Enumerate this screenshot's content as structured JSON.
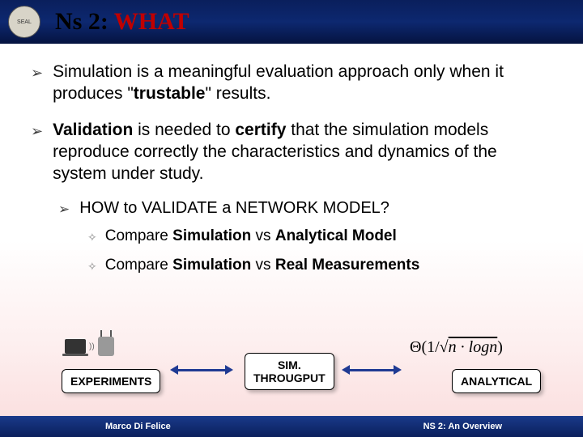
{
  "header": {
    "title_prefix": "Ns 2: ",
    "title_emphasis": "WHAT",
    "logo_text": "SEAL"
  },
  "bullets": [
    {
      "pre": "Simulation is a meaningful evaluation approach only when it produces \"",
      "bold": "trustable",
      "post": "\" results."
    },
    {
      "parts": {
        "b1": "Validation",
        "t1": " is needed to ",
        "b2": "certify",
        "t2": " that the simulation models reproduce correctly the characteristics and dynamics of the system under study."
      }
    }
  ],
  "sub_bullet": "HOW to VALIDATE a NETWORK MODEL?",
  "compare_items": [
    {
      "pre": "Compare ",
      "b1": "Simulation",
      "mid": " vs ",
      "b2": "Analytical Model"
    },
    {
      "pre": "Compare ",
      "b1": "Simulation",
      "mid": " vs ",
      "b2": "Real Measurements"
    }
  ],
  "diagram": {
    "experiments_label": "EXPERIMENTS",
    "sim_label_line1": "SIM.",
    "sim_label_line2": "THROUGPUT",
    "analytical_label": "ANALYTICAL",
    "formula_prefix": "Θ(1/",
    "formula_root": "n · logn",
    "formula_suffix": ")",
    "arrow_color": "#1f3a93",
    "box_border": "#000000",
    "box_bg": "#ffffff"
  },
  "footer": {
    "author": "Marco Di Felice",
    "subtitle": "NS 2: An Overview"
  },
  "colors": {
    "header_gradient_top": "#0a1f5c",
    "header_gradient_bottom": "#051340",
    "title_red": "#c00000",
    "body_gradient_end": "#fadcdc"
  }
}
